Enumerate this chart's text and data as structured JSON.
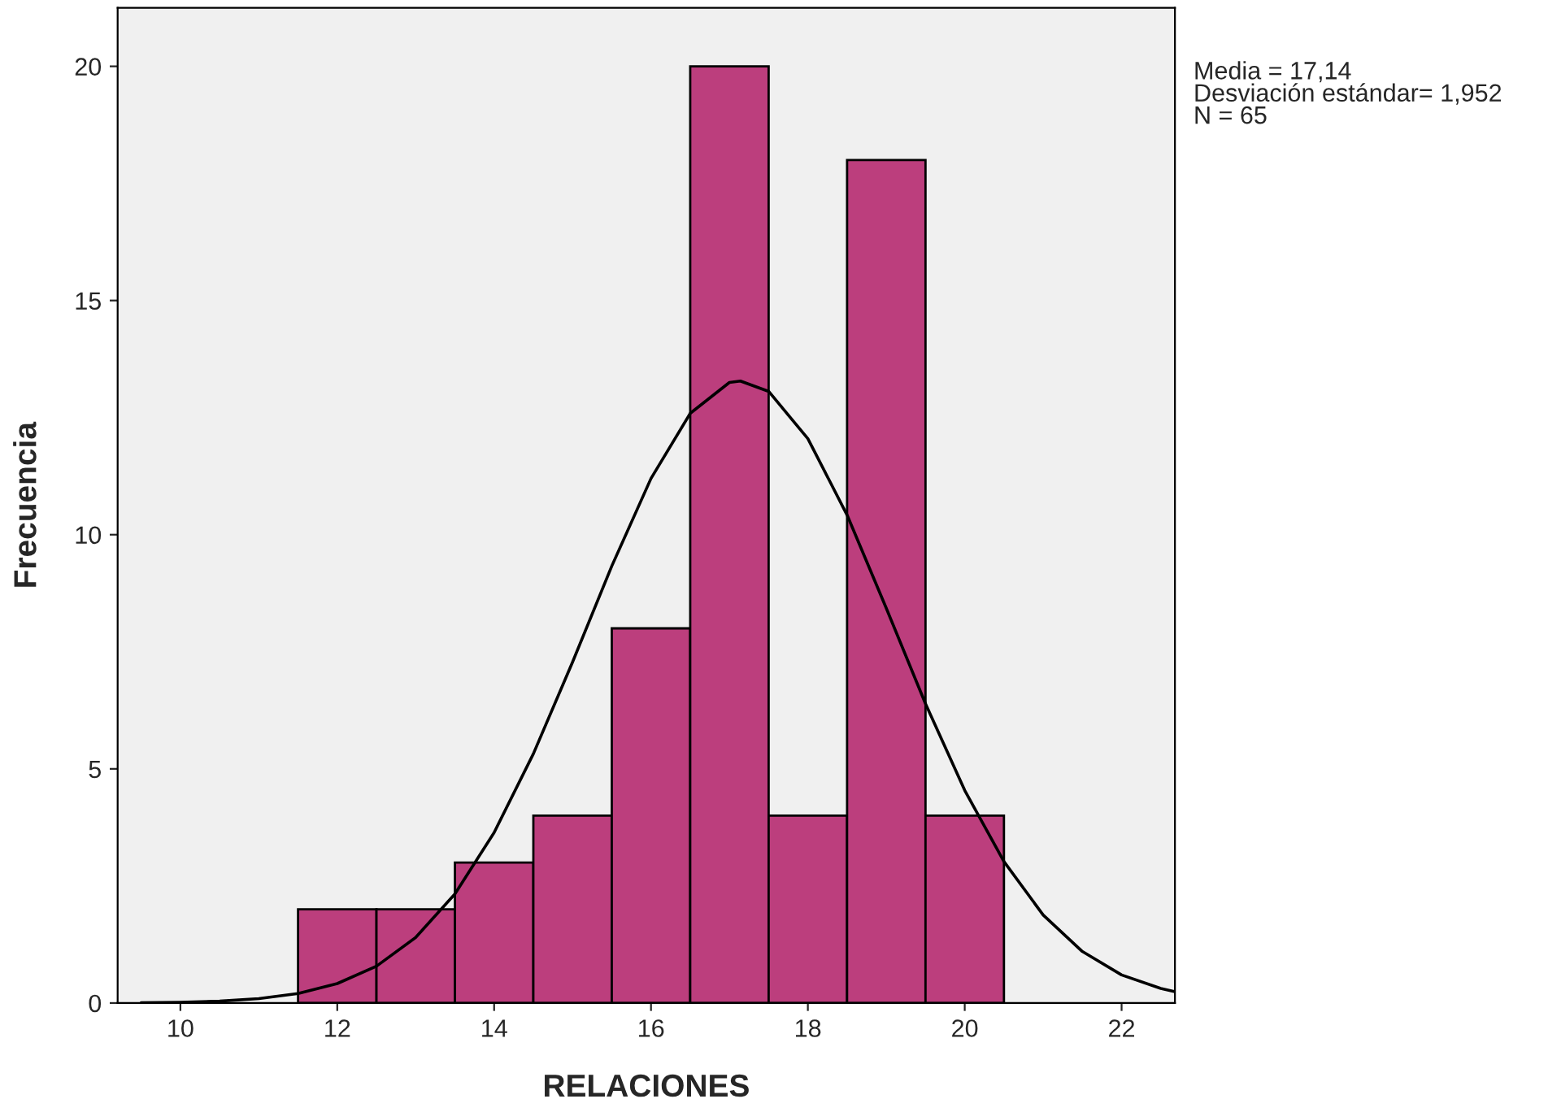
{
  "chart_data": {
    "type": "histogram",
    "xlabel": "RELACIONES",
    "ylabel": "Frecuencia",
    "bins": [
      11.5,
      12.5,
      13.5,
      14.5,
      15.5,
      16.5,
      17.5,
      18.5,
      19.5,
      20.5
    ],
    "values": [
      2,
      2,
      3,
      4,
      8,
      20,
      4,
      18,
      4
    ],
    "color": "#bc3e7d",
    "series": [
      {
        "type": "line",
        "color": "#000000",
        "x": [
          9.5,
          10,
          10.5,
          11,
          11.5,
          12,
          12.5,
          13,
          13.5,
          14,
          14.5,
          15,
          15.5,
          16,
          16.5,
          17,
          17.14,
          17.5,
          18,
          18.5,
          19,
          19.5,
          20,
          20.5,
          21,
          21.5,
          22,
          22.5,
          22.68
        ],
        "values": [
          0.006,
          0.016,
          0.041,
          0.094,
          0.204,
          0.415,
          0.787,
          1.4,
          2.33,
          3.64,
          5.32,
          7.28,
          9.33,
          11.2,
          12.59,
          13.25,
          13.28,
          13.06,
          12.05,
          10.42,
          8.43,
          6.39,
          4.54,
          3.02,
          1.88,
          1.1,
          0.6,
          0.31,
          0.24
        ]
      }
    ],
    "xlim": [
      9.2,
      22.68
    ],
    "xticks": [
      10,
      12,
      14,
      16,
      18,
      20,
      22
    ],
    "ylim": [
      0,
      21.25
    ],
    "yticks": [
      0,
      5,
      10,
      15,
      20
    ],
    "grid": false,
    "annotations": [
      "Media = 17,14\nDesviación estándar= 1,952\nN = 65"
    ]
  }
}
